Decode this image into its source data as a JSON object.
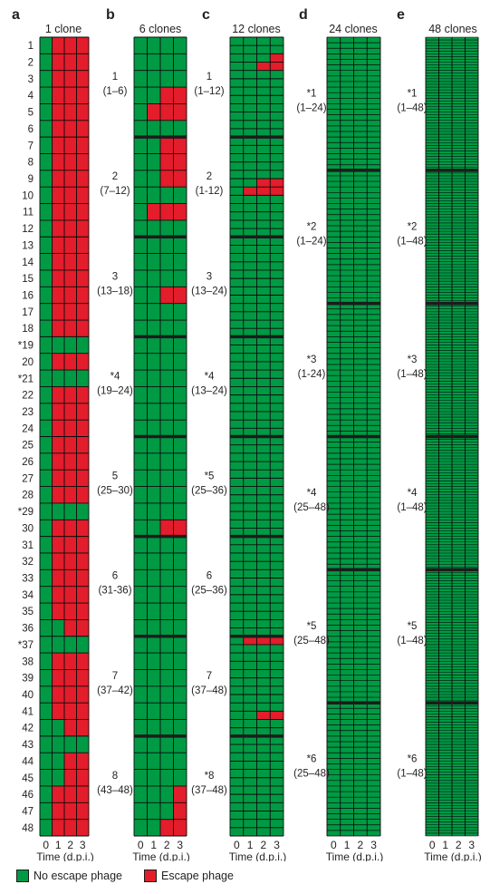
{
  "colors": {
    "no_escape": "#009a44",
    "escape": "#e31d2b",
    "grid": "#0b0b0b"
  },
  "legend": {
    "no_escape": "No escape phage",
    "escape": "Escape phage"
  },
  "chart_data": [
    {
      "panel": "a",
      "type": "heatmap",
      "title": "1 clone",
      "xlabel": "Time (d.p.i.)",
      "x": [
        0,
        1,
        2,
        3
      ],
      "rows": 48,
      "group_size": 1,
      "row_labels": [
        "1",
        "2",
        "3",
        "4",
        "5",
        "6",
        "7",
        "8",
        "9",
        "10",
        "11",
        "12",
        "13",
        "14",
        "15",
        "16",
        "17",
        "18",
        "*19",
        "20",
        "*21",
        "22",
        "23",
        "24",
        "25",
        "26",
        "27",
        "28",
        "*29",
        "30",
        "31",
        "32",
        "33",
        "34",
        "35",
        "36",
        "*37",
        "38",
        "39",
        "40",
        "41",
        "42",
        "43",
        "44",
        "45",
        "46",
        "47",
        "48"
      ],
      "escape_first_day": [
        1,
        1,
        1,
        1,
        1,
        1,
        1,
        1,
        1,
        1,
        1,
        1,
        1,
        1,
        1,
        1,
        1,
        1,
        null,
        1,
        null,
        1,
        1,
        1,
        1,
        1,
        1,
        1,
        null,
        1,
        1,
        1,
        1,
        1,
        1,
        2,
        null,
        1,
        1,
        1,
        1,
        2,
        null,
        2,
        2,
        1,
        1,
        1
      ]
    },
    {
      "panel": "b",
      "type": "heatmap",
      "title": "6 clones",
      "xlabel": "Time (d.p.i.)",
      "x": [
        0,
        1,
        2,
        3
      ],
      "rows": 48,
      "group_size": 6,
      "groups": [
        {
          "label": "1",
          "range": "(1–6)"
        },
        {
          "label": "2",
          "range": "(7–12)"
        },
        {
          "label": "3",
          "range": "(13–18)"
        },
        {
          "label": "*4",
          "range": "(19–24)"
        },
        {
          "label": "5",
          "range": "(25–30)"
        },
        {
          "label": "6",
          "range": "(31-36)"
        },
        {
          "label": "7",
          "range": "(37–42)"
        },
        {
          "label": "8",
          "range": "(43–48)"
        }
      ],
      "escape_first_day": [
        null,
        null,
        null,
        2,
        1,
        null,
        2,
        2,
        2,
        null,
        1,
        null,
        null,
        null,
        null,
        2,
        null,
        null,
        null,
        null,
        null,
        null,
        null,
        null,
        null,
        null,
        null,
        null,
        null,
        2,
        null,
        null,
        null,
        null,
        null,
        null,
        null,
        null,
        null,
        null,
        null,
        null,
        null,
        null,
        null,
        3,
        3,
        2
      ]
    },
    {
      "panel": "c",
      "type": "heatmap",
      "title": "12 clones",
      "xlabel": "Time (d.p.i.)",
      "x": [
        0,
        1,
        2,
        3
      ],
      "rows": 96,
      "group_size": 12,
      "groups": [
        {
          "label": "1",
          "range": "(1–12)"
        },
        {
          "label": "2",
          "range": "(1-12)"
        },
        {
          "label": "3",
          "range": "(13–24)"
        },
        {
          "label": "*4",
          "range": "(13–24)"
        },
        {
          "label": "*5",
          "range": "(25–36)"
        },
        {
          "label": "6",
          "range": "(25–36)"
        },
        {
          "label": "7",
          "range": "(37–48)"
        },
        {
          "label": "*8",
          "range": "(37–48)"
        }
      ],
      "escape_cells": [
        [
          2,
          3
        ],
        [
          3,
          2
        ],
        [
          3,
          3
        ],
        [
          17,
          2
        ],
        [
          17,
          3
        ],
        [
          18,
          1
        ],
        [
          18,
          2
        ],
        [
          18,
          3
        ],
        [
          72,
          1
        ],
        [
          72,
          2
        ],
        [
          72,
          3
        ],
        [
          81,
          2
        ],
        [
          81,
          3
        ]
      ]
    },
    {
      "panel": "d",
      "type": "heatmap",
      "title": "24 clones",
      "xlabel": "Time (d.p.i.)",
      "x": [
        0,
        1,
        2,
        3
      ],
      "rows": 144,
      "group_size": 24,
      "groups": [
        {
          "label": "*1",
          "range": "(1–24)"
        },
        {
          "label": "*2",
          "range": "(1–24)"
        },
        {
          "label": "*3",
          "range": "(1-24)"
        },
        {
          "label": "*4",
          "range": "(25–48)"
        },
        {
          "label": "*5",
          "range": "(25–48)"
        },
        {
          "label": "*6",
          "range": "(25–48)"
        }
      ],
      "escape_cells": []
    },
    {
      "panel": "e",
      "type": "heatmap",
      "title": "48 clones",
      "xlabel": "Time (d.p.i.)",
      "x": [
        0,
        1,
        2,
        3
      ],
      "rows": 288,
      "group_size": 48,
      "groups": [
        {
          "label": "*1",
          "range": "(1–48)"
        },
        {
          "label": "*2",
          "range": "(1–48)"
        },
        {
          "label": "*3",
          "range": "(1–48)"
        },
        {
          "label": "*4",
          "range": "(1–48)"
        },
        {
          "label": "*5",
          "range": "(1–48)"
        },
        {
          "label": "*6",
          "range": "(1–48)"
        }
      ],
      "escape_cells": []
    }
  ]
}
